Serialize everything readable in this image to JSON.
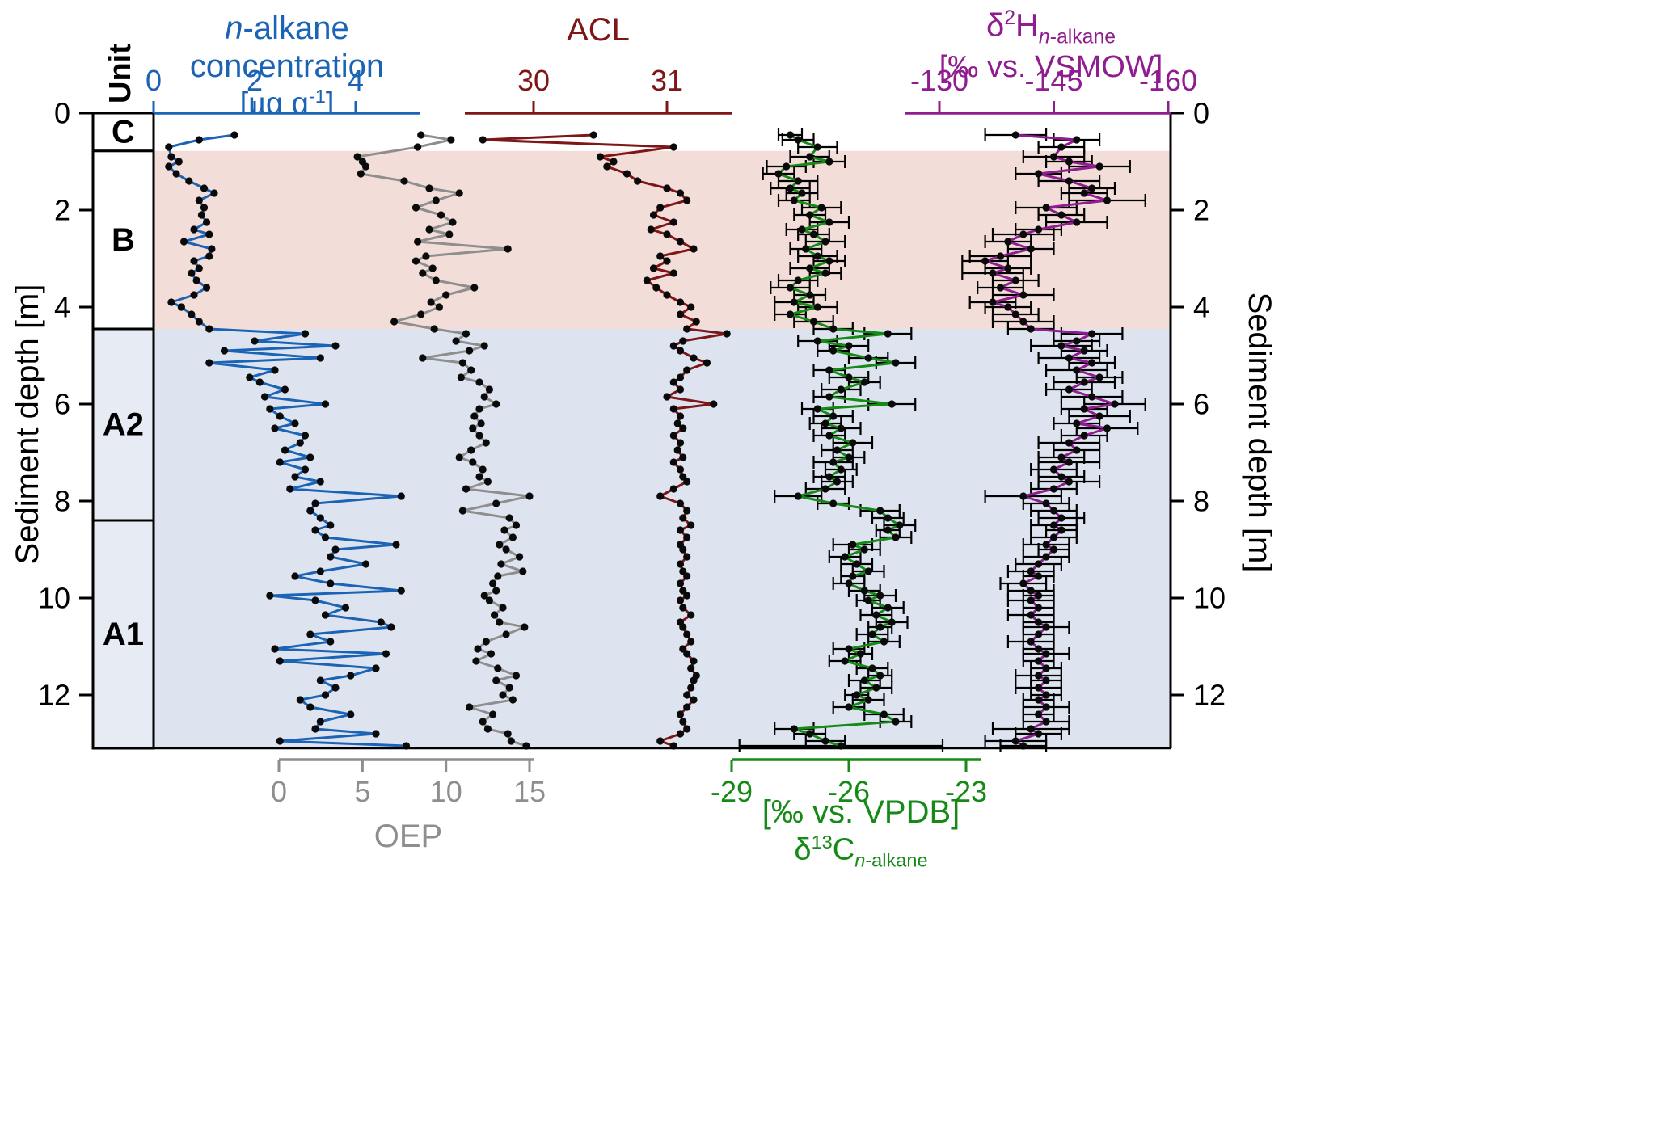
{
  "titles": {
    "conc_line1": "<i>n</i>-alkane concentration",
    "conc_line2": "[µg g<sup>-1</sup>]",
    "acl": "ACL",
    "d2h_line1": "δ<sup>2</sup>H<sub><i>n</i>-alkane</sub>",
    "d2h_line2": "[‰ vs. VSMOW]",
    "oep": "OEP",
    "d13c_line1": "[‰ vs. VPDB]",
    "d13c_line2": "δ<sup>13</sup>C<sub><i>n</i>-alkane</sub>",
    "unit": "Unit",
    "depth_left": "Sediment depth [m]",
    "depth_right": "Sediment depth [m]"
  },
  "colors": {
    "conc": "#1b63b5",
    "oep": "#8e8e8e",
    "acl": "#7e1516",
    "d13c": "#168a16",
    "d2h": "#8f1d8f",
    "band_b": "#f3ddd8",
    "band_a": "#dde4ef",
    "marker": "#0a0a0a",
    "error": "#000000"
  },
  "chart_data": {
    "type": "line",
    "orientation": "depth-profile",
    "depth_axis": {
      "label": "Sediment depth [m]",
      "ticks": [
        0,
        2,
        4,
        6,
        8,
        10,
        12
      ],
      "range": [
        0,
        13.1
      ]
    },
    "zones": [
      {
        "name": "C",
        "from": 0,
        "to": 0.78,
        "band": "#ffffff",
        "box": "#ffffff"
      },
      {
        "name": "B",
        "from": 0.78,
        "to": 4.45,
        "band": "#f3ddd8",
        "box": "#ffffff"
      },
      {
        "name": "A2",
        "from": 4.45,
        "to": 8.4,
        "band": "#dde4ef",
        "box": "#e7ebf3"
      },
      {
        "name": "A1",
        "from": 8.4,
        "to": 13.1,
        "band": "#dde4ef",
        "box": "#e7ebf3"
      }
    ],
    "depth_m": [
      0.45,
      0.55,
      0.7,
      0.9,
      1.0,
      1.1,
      1.25,
      1.4,
      1.55,
      1.65,
      1.8,
      1.95,
      2.1,
      2.25,
      2.4,
      2.5,
      2.65,
      2.8,
      2.95,
      3.05,
      3.2,
      3.3,
      3.45,
      3.6,
      3.75,
      3.9,
      4.0,
      4.15,
      4.3,
      4.45,
      4.55,
      4.7,
      4.8,
      4.9,
      5.05,
      5.15,
      5.3,
      5.45,
      5.55,
      5.7,
      5.85,
      6.0,
      6.1,
      6.25,
      6.4,
      6.5,
      6.65,
      6.8,
      6.95,
      7.1,
      7.2,
      7.35,
      7.5,
      7.6,
      7.75,
      7.9,
      8.05,
      8.2,
      8.35,
      8.5,
      8.6,
      8.75,
      8.9,
      9.0,
      9.15,
      9.3,
      9.45,
      9.55,
      9.7,
      9.85,
      9.95,
      10.05,
      10.2,
      10.35,
      10.5,
      10.6,
      10.75,
      10.9,
      11.05,
      11.15,
      11.3,
      11.45,
      11.6,
      11.7,
      11.85,
      12.0,
      12.1,
      12.25,
      12.4,
      12.55,
      12.7,
      12.8,
      12.95,
      13.05
    ],
    "series": [
      {
        "id": "conc",
        "name": "n-alkane concentration [ug g-1]",
        "color": "#1b63b5",
        "axis_side": "top",
        "ticks": [
          0,
          2,
          4
        ],
        "range": [
          0,
          5.3
        ],
        "values": [
          1.6,
          0.9,
          0.3,
          0.35,
          0.5,
          0.3,
          0.45,
          0.7,
          1.0,
          1.2,
          0.9,
          1.0,
          0.95,
          1.05,
          0.8,
          1.1,
          0.6,
          1.15,
          1.1,
          0.8,
          0.9,
          0.75,
          0.85,
          1.05,
          0.8,
          0.35,
          0.55,
          0.75,
          0.9,
          1.1,
          3.0,
          2.0,
          3.6,
          1.4,
          3.3,
          1.1,
          2.4,
          1.9,
          2.1,
          2.6,
          2.2,
          3.4,
          2.3,
          2.5,
          2.8,
          2.4,
          3.0,
          2.9,
          2.6,
          3.1,
          2.5,
          3.0,
          2.8,
          3.3,
          2.7,
          4.9,
          3.2,
          3.1,
          3.3,
          3.5,
          3.2,
          3.4,
          4.8,
          3.6,
          3.5,
          4.2,
          3.3,
          2.8,
          3.5,
          4.9,
          2.3,
          3.2,
          3.8,
          3.4,
          4.5,
          4.7,
          3.1,
          3.5,
          2.4,
          4.6,
          2.5,
          4.4,
          3.9,
          3.3,
          3.6,
          3.4,
          2.9,
          3.1,
          3.9,
          3.3,
          3.2,
          4.4,
          2.5,
          5.0
        ]
      },
      {
        "id": "oep",
        "name": "OEP",
        "color": "#8e8e8e",
        "axis_side": "bottom",
        "ticks": [
          0,
          5,
          10,
          15
        ],
        "range": [
          0,
          15.3
        ],
        "values": [
          8.5,
          10.3,
          8.3,
          4.7,
          5.0,
          5.2,
          4.9,
          7.5,
          9.0,
          10.8,
          9.4,
          8.2,
          9.7,
          10.4,
          9.0,
          10.2,
          8.3,
          13.7,
          8.8,
          8.2,
          9.2,
          8.6,
          9.4,
          11.7,
          10.0,
          9.1,
          9.6,
          8.5,
          6.9,
          9.3,
          11.2,
          10.6,
          12.3,
          11.4,
          8.6,
          11.0,
          11.5,
          10.9,
          12.0,
          12.6,
          12.3,
          13.0,
          12.0,
          11.7,
          12.1,
          11.6,
          12.0,
          12.4,
          11.5,
          10.8,
          11.6,
          12.2,
          12.0,
          12.5,
          11.2,
          15.0,
          13.0,
          11.0,
          13.8,
          14.2,
          13.5,
          14.0,
          13.2,
          13.6,
          14.4,
          13.3,
          14.6,
          13.1,
          12.8,
          13.0,
          12.3,
          12.6,
          13.4,
          12.9,
          13.2,
          14.7,
          13.6,
          12.4,
          11.9,
          12.7,
          11.8,
          13.1,
          14.2,
          13.0,
          13.8,
          13.4,
          14.0,
          11.4,
          12.8,
          12.2,
          12.5,
          13.7,
          13.9,
          14.8
        ]
      },
      {
        "id": "acl",
        "name": "ACL",
        "color": "#7e1516",
        "axis_side": "top",
        "ticks": [
          30,
          31
        ],
        "range": [
          29.5,
          31.5
        ],
        "values": [
          30.45,
          29.62,
          31.05,
          30.5,
          30.6,
          30.55,
          30.7,
          30.78,
          31.0,
          31.1,
          31.15,
          30.95,
          30.9,
          31.05,
          30.88,
          31.0,
          31.1,
          31.2,
          30.95,
          31.0,
          30.9,
          31.05,
          30.85,
          30.92,
          31.0,
          31.1,
          31.18,
          31.1,
          31.22,
          31.15,
          31.45,
          31.12,
          31.05,
          31.1,
          31.2,
          31.3,
          31.15,
          31.1,
          31.05,
          31.1,
          31.0,
          31.35,
          31.05,
          31.1,
          31.08,
          31.12,
          31.05,
          31.1,
          31.08,
          31.12,
          31.05,
          31.1,
          31.12,
          31.15,
          31.05,
          30.95,
          31.1,
          31.15,
          31.12,
          31.18,
          31.1,
          31.15,
          31.1,
          31.12,
          31.15,
          31.1,
          31.12,
          31.15,
          31.1,
          31.12,
          31.15,
          31.1,
          31.12,
          31.18,
          31.1,
          31.12,
          31.15,
          31.18,
          31.12,
          31.15,
          31.2,
          31.18,
          31.22,
          31.2,
          31.18,
          31.15,
          31.2,
          31.15,
          31.1,
          31.12,
          31.15,
          31.1,
          30.95,
          31.05
        ]
      },
      {
        "id": "d13c",
        "name": "d13C n-alkane [permil vs. VPDB]",
        "color": "#168a16",
        "axis_side": "bottom",
        "ticks": [
          -29,
          -26,
          -23
        ],
        "range": [
          -29,
          -22.6
        ],
        "values": [
          -27.5,
          -27.3,
          -26.8,
          -27.0,
          -26.5,
          -27.6,
          -27.8,
          -27.3,
          -27.5,
          -27.2,
          -27.4,
          -26.7,
          -27.0,
          -26.5,
          -27.2,
          -26.9,
          -26.6,
          -27.1,
          -26.8,
          -26.5,
          -27.0,
          -26.6,
          -27.3,
          -27.5,
          -27.0,
          -27.4,
          -26.8,
          -27.5,
          -26.9,
          -26.4,
          -25.0,
          -26.8,
          -26.0,
          -26.4,
          -25.5,
          -24.8,
          -26.5,
          -26.0,
          -25.6,
          -26.2,
          -26.5,
          -24.9,
          -26.8,
          -26.4,
          -26.6,
          -26.2,
          -26.5,
          -25.9,
          -26.3,
          -26.0,
          -26.4,
          -26.2,
          -26.5,
          -26.3,
          -26.6,
          -27.3,
          -26.4,
          -25.2,
          -25.0,
          -24.7,
          -25.0,
          -24.8,
          -25.9,
          -25.6,
          -26.1,
          -25.8,
          -25.5,
          -25.9,
          -26.0,
          -25.6,
          -25.2,
          -25.5,
          -25.0,
          -25.3,
          -24.9,
          -25.2,
          -25.4,
          -25.1,
          -26.0,
          -25.7,
          -26.1,
          -25.4,
          -25.2,
          -25.6,
          -25.3,
          -25.8,
          -25.5,
          -26.0,
          -25.1,
          -24.8,
          -27.4,
          -27.0,
          -26.6,
          -26.2
        ],
        "errors": [
          0.3,
          0.4,
          0.5,
          0.5,
          0.4,
          0.5,
          0.4,
          0.5,
          0.5,
          0.4,
          0.4,
          0.5,
          0.4,
          0.5,
          0.4,
          0.4,
          0.5,
          0.4,
          0.5,
          0.4,
          0.5,
          0.4,
          0.5,
          0.5,
          0.4,
          0.5,
          0.5,
          0.4,
          0.5,
          0.5,
          0.6,
          0.5,
          0.5,
          0.4,
          0.5,
          0.5,
          0.4,
          0.5,
          0.4,
          0.5,
          0.4,
          0.6,
          0.4,
          0.5,
          0.4,
          0.5,
          0.4,
          0.5,
          0.4,
          0.4,
          0.5,
          0.4,
          0.4,
          0.4,
          0.5,
          0.6,
          0.4,
          0.5,
          0.4,
          0.4,
          0.3,
          0.4,
          0.5,
          0.4,
          0.4,
          0.4,
          0.4,
          0.3,
          0.4,
          0.4,
          0.4,
          0.3,
          0.4,
          0.4,
          0.4,
          0.3,
          0.4,
          0.4,
          0.4,
          0.3,
          0.4,
          0.4,
          0.3,
          0.4,
          0.4,
          0.3,
          0.4,
          0.4,
          0.5,
          0.4,
          0.5,
          0.4,
          0.5,
          2.6
        ]
      },
      {
        "id": "d2h",
        "name": "d2H n-alkane [permil vs. VSMOW]",
        "color": "#8f1d8f",
        "axis_side": "top",
        "ticks": [
          -130,
          -145,
          -160
        ],
        "range": [
          -125.5,
          -160
        ],
        "values": [
          -140,
          -148,
          -146,
          -145,
          -147,
          -151,
          -143,
          -147,
          -150,
          -149,
          -152,
          -144,
          -146,
          -148,
          -143,
          -141,
          -139,
          -142,
          -138,
          -136,
          -139,
          -137,
          -140,
          -138,
          -141,
          -137,
          -139,
          -140,
          -141,
          -142,
          -150,
          -148,
          -146,
          -149,
          -147,
          -150,
          -148,
          -151,
          -149,
          -147,
          -150,
          -153,
          -149,
          -151,
          -148,
          -152,
          -149,
          -147,
          -148,
          -146,
          -147,
          -145,
          -146,
          -147,
          -145,
          -141,
          -144,
          -145,
          -146,
          -145,
          -146,
          -145,
          -144,
          -145,
          -144,
          -143,
          -142,
          -143,
          -141,
          -142,
          -143,
          -142,
          -143,
          -142,
          -143,
          -144,
          -143,
          -142,
          -143,
          -144,
          -143,
          -144,
          -143,
          -144,
          -143,
          -144,
          -143,
          -144,
          -143,
          -144,
          -142,
          -143,
          -140,
          -141
        ],
        "errors": [
          4,
          3,
          3,
          4,
          3,
          4,
          3,
          4,
          3,
          3,
          5,
          4,
          3,
          4,
          3,
          4,
          3,
          3,
          4,
          3,
          3,
          4,
          3,
          3,
          4,
          3,
          3,
          3,
          4,
          3,
          4,
          3,
          4,
          3,
          4,
          3,
          4,
          3,
          4,
          3,
          4,
          4,
          3,
          4,
          3,
          4,
          3,
          4,
          3,
          3,
          4,
          3,
          3,
          4,
          3,
          5,
          3,
          3,
          3,
          3,
          2,
          3,
          3,
          2,
          3,
          3,
          3,
          2,
          3,
          3,
          2,
          3,
          2,
          3,
          2,
          3,
          2,
          3,
          2,
          3,
          2,
          2,
          3,
          2,
          3,
          2,
          2,
          3,
          2,
          3,
          5,
          3,
          4,
          3
        ]
      }
    ]
  }
}
